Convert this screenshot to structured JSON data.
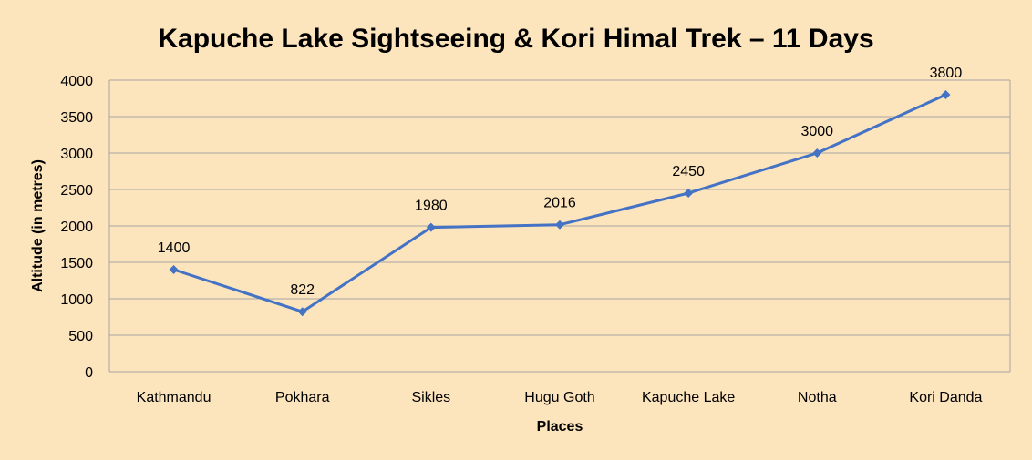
{
  "chart_data": {
    "type": "line",
    "title": "Kapuche Lake Sightseeing & Kori Himal Trek – 11 Days",
    "xlabel": "Places",
    "ylabel": "Altitude (in metres)",
    "categories": [
      "Kathmandu",
      "Pokhara",
      "Sikles",
      "Hugu Goth",
      "Kapuche Lake",
      "Notha",
      "Kori Danda"
    ],
    "series": [
      {
        "values": [
          1400,
          822,
          1980,
          2016,
          2450,
          3000,
          3800
        ]
      }
    ],
    "data_labels": [
      "1400",
      "822",
      "1980",
      "2016",
      "2450",
      "3000",
      "3800"
    ],
    "y_ticks": [
      "0",
      "500",
      "1000",
      "1500",
      "2000",
      "2500",
      "3000",
      "3500",
      "4000"
    ],
    "ylim": [
      0,
      4000
    ],
    "grid": "horizontal",
    "legend": "none",
    "marker": "diamond",
    "colors": {
      "background": "#fce4bd",
      "line": "#4472c4",
      "grid": "#a6a6a6"
    }
  }
}
